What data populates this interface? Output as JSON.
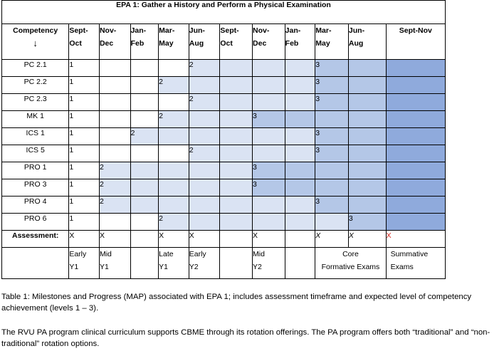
{
  "table": {
    "title": "EPA 1: Gather a History and Perform a Physical Examination",
    "competency_header": "Competency",
    "arrow": "↓",
    "columns": [
      {
        "top": "Sept-",
        "bottom": "Oct"
      },
      {
        "top": "Nov-",
        "bottom": "Dec"
      },
      {
        "top": "Jan-",
        "bottom": "Feb"
      },
      {
        "top": "Mar-",
        "bottom": "May"
      },
      {
        "top": "Jun-",
        "bottom": "Aug"
      },
      {
        "top": "Sept-",
        "bottom": "Oct"
      },
      {
        "top": "Nov-",
        "bottom": "Dec"
      },
      {
        "top": "Jan-",
        "bottom": "Feb"
      },
      {
        "top": "Mar-",
        "bottom": "May"
      },
      {
        "top": "Jun-",
        "bottom": "Aug"
      }
    ],
    "last_column_header": "Sept-Nov",
    "rows": [
      {
        "name": "PC 2.1",
        "cells": [
          "1",
          "",
          "",
          "",
          "2",
          "",
          "",
          "",
          "3",
          "",
          ""
        ]
      },
      {
        "name": "PC 2.2",
        "cells": [
          "1",
          "",
          "",
          "2",
          "",
          "",
          "",
          "",
          "3",
          "",
          ""
        ]
      },
      {
        "name": "PC 2.3",
        "cells": [
          "1",
          "",
          "",
          "",
          "2",
          "",
          "",
          "",
          "3",
          "",
          ""
        ]
      },
      {
        "name": "MK 1",
        "cells": [
          "1",
          "",
          "",
          "2",
          "",
          "",
          "3",
          "",
          "",
          "",
          ""
        ]
      },
      {
        "name": "ICS 1",
        "cells": [
          "1",
          "",
          "2",
          "",
          "",
          "",
          "",
          "",
          "3",
          "",
          ""
        ]
      },
      {
        "name": "ICS 5",
        "cells": [
          "1",
          "",
          "",
          "",
          "2",
          "",
          "",
          "",
          "3",
          "",
          ""
        ]
      },
      {
        "name": "PRO 1",
        "cells": [
          "1",
          "2",
          "",
          "",
          "",
          "",
          "3",
          "",
          "",
          "",
          ""
        ]
      },
      {
        "name": "PRO 3",
        "cells": [
          "1",
          "2",
          "",
          "",
          "",
          "",
          "3",
          "",
          "",
          "",
          ""
        ]
      },
      {
        "name": "PRO 4",
        "cells": [
          "1",
          "2",
          "",
          "",
          "",
          "",
          "",
          "",
          "3",
          "",
          ""
        ]
      },
      {
        "name": "PRO 6",
        "cells": [
          "1",
          "",
          "",
          "2",
          "",
          "",
          "",
          "",
          "",
          "3",
          ""
        ]
      }
    ],
    "assessment_label": "Assessment:",
    "assessment": [
      "X",
      "X",
      "",
      "X",
      "X",
      "",
      "X",
      "",
      "X",
      "X",
      "X"
    ],
    "periods": {
      "early_y1": {
        "a": "Early",
        "b": "Y1"
      },
      "mid_y1": {
        "a": "Mid",
        "b": "Y1"
      },
      "late_y1": {
        "a": "Late",
        "b": "Y1"
      },
      "early_y2": {
        "a": "Early",
        "b": "Y2"
      },
      "mid_y2": {
        "a": "Mid",
        "b": "Y2"
      },
      "core": {
        "a": "Core",
        "b": "Formative Exams"
      },
      "summative": {
        "a": "Summative",
        "b": "Exams"
      }
    }
  },
  "caption": "Table 1: Milestones and Progress (MAP) associated with EPA 1; includes assessment timeframe and expected level of competency achievement (levels 1 – 3).",
  "paragraph": "The RVU PA program clinical curriculum supports CBME through its rotation offerings. The PA program offers both “traditional” and “non-traditional” rotation options.",
  "colors": {
    "shade_light": "#dae3f3",
    "shade_mid": "#b4c7e7",
    "shade_dark": "#8faadc",
    "summative_x": "#d9261c"
  }
}
